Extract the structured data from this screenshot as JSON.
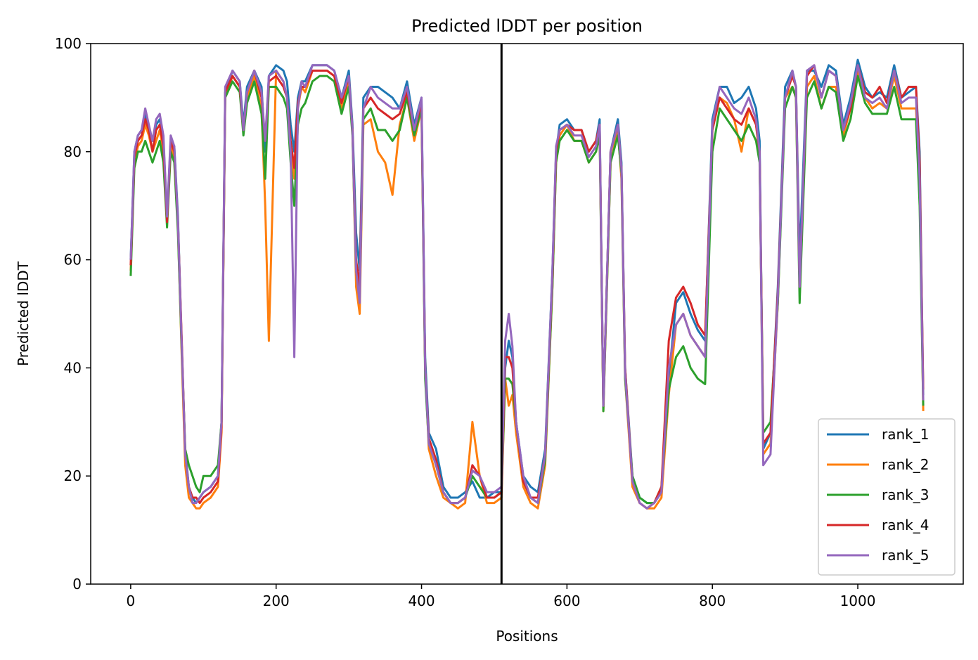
{
  "chart_data": {
    "type": "line",
    "title": "Predicted lDDT per position",
    "xlabel": "Positions",
    "ylabel": "Predicted lDDT",
    "xlim": [
      -55,
      1145
    ],
    "ylim": [
      0,
      100
    ],
    "xticks": [
      0,
      200,
      400,
      600,
      800,
      1000
    ],
    "yticks": [
      0,
      20,
      40,
      60,
      80,
      100
    ],
    "grid": false,
    "legend_position": "lower right",
    "vline": {
      "x": 510,
      "color": "#000000"
    },
    "x": [
      0,
      5,
      10,
      15,
      20,
      25,
      30,
      35,
      40,
      45,
      50,
      55,
      60,
      65,
      70,
      75,
      80,
      85,
      90,
      95,
      100,
      110,
      120,
      125,
      130,
      140,
      150,
      155,
      160,
      170,
      180,
      185,
      190,
      200,
      210,
      215,
      220,
      225,
      230,
      235,
      240,
      250,
      260,
      270,
      280,
      290,
      300,
      305,
      310,
      315,
      320,
      330,
      340,
      350,
      360,
      370,
      380,
      390,
      400,
      405,
      410,
      420,
      430,
      440,
      450,
      460,
      470,
      480,
      490,
      500,
      510,
      515,
      520,
      525,
      530,
      540,
      550,
      560,
      570,
      580,
      585,
      590,
      600,
      610,
      620,
      630,
      640,
      645,
      650,
      660,
      670,
      675,
      680,
      690,
      700,
      710,
      720,
      730,
      740,
      750,
      760,
      770,
      780,
      790,
      800,
      810,
      820,
      830,
      840,
      850,
      860,
      865,
      870,
      880,
      890,
      900,
      910,
      915,
      920,
      930,
      940,
      950,
      960,
      970,
      980,
      990,
      1000,
      1010,
      1020,
      1030,
      1040,
      1050,
      1060,
      1070,
      1080,
      1085,
      1090
    ],
    "series": [
      {
        "name": "rank_1",
        "color": "#1f77b4",
        "values": [
          60,
          80,
          83,
          84,
          87,
          84,
          82,
          85,
          86,
          82,
          68,
          82,
          81,
          68,
          45,
          25,
          18,
          16,
          15,
          16,
          17,
          18,
          20,
          30,
          91,
          95,
          93,
          85,
          92,
          95,
          92,
          80,
          94,
          96,
          95,
          93,
          85,
          80,
          90,
          93,
          93,
          96,
          96,
          96,
          95,
          90,
          95,
          85,
          65,
          58,
          90,
          92,
          92,
          91,
          90,
          88,
          93,
          85,
          90,
          42,
          28,
          25,
          18,
          16,
          16,
          17,
          19,
          16,
          16,
          17,
          17,
          40,
          45,
          42,
          30,
          20,
          18,
          17,
          25,
          58,
          80,
          85,
          86,
          84,
          84,
          80,
          82,
          86,
          33,
          80,
          86,
          78,
          40,
          20,
          16,
          15,
          15,
          17,
          38,
          52,
          54,
          50,
          47,
          45,
          86,
          92,
          92,
          89,
          90,
          92,
          88,
          82,
          25,
          28,
          55,
          92,
          95,
          92,
          60,
          95,
          95,
          92,
          96,
          95,
          85,
          90,
          97,
          92,
          90,
          91,
          90,
          96,
          90,
          91,
          92,
          80,
          35
        ]
      },
      {
        "name": "rank_2",
        "color": "#ff7f0e",
        "values": [
          58,
          78,
          81,
          82,
          85,
          83,
          80,
          82,
          84,
          80,
          67,
          81,
          79,
          66,
          43,
          22,
          16,
          15,
          14,
          14,
          15,
          16,
          18,
          28,
          90,
          94,
          92,
          84,
          90,
          94,
          88,
          70,
          45,
          95,
          93,
          90,
          80,
          75,
          88,
          92,
          91,
          95,
          95,
          95,
          94,
          88,
          93,
          84,
          55,
          50,
          85,
          86,
          80,
          78,
          72,
          85,
          90,
          82,
          88,
          40,
          25,
          20,
          16,
          15,
          14,
          15,
          30,
          20,
          15,
          15,
          16,
          38,
          33,
          35,
          28,
          18,
          15,
          14,
          22,
          55,
          78,
          83,
          85,
          82,
          82,
          78,
          80,
          84,
          32,
          78,
          84,
          75,
          38,
          18,
          15,
          14,
          14,
          16,
          35,
          48,
          50,
          46,
          44,
          42,
          84,
          90,
          89,
          86,
          80,
          88,
          85,
          79,
          24,
          26,
          52,
          90,
          92,
          90,
          55,
          92,
          94,
          88,
          92,
          92,
          83,
          88,
          95,
          90,
          88,
          89,
          88,
          94,
          88,
          88,
          88,
          75,
          32
        ]
      },
      {
        "name": "rank_3",
        "color": "#2ca02c",
        "values": [
          57,
          77,
          80,
          80,
          82,
          80,
          78,
          80,
          82,
          78,
          66,
          80,
          78,
          65,
          44,
          25,
          22,
          20,
          18,
          17,
          20,
          20,
          22,
          30,
          90,
          93,
          91,
          83,
          89,
          93,
          87,
          75,
          92,
          92,
          90,
          88,
          78,
          70,
          85,
          88,
          89,
          93,
          94,
          94,
          93,
          87,
          92,
          83,
          58,
          53,
          86,
          88,
          84,
          84,
          82,
          84,
          90,
          83,
          88,
          38,
          26,
          22,
          17,
          15,
          15,
          16,
          20,
          18,
          16,
          16,
          17,
          38,
          38,
          37,
          30,
          19,
          16,
          15,
          23,
          55,
          78,
          82,
          84,
          82,
          82,
          78,
          80,
          83,
          32,
          78,
          83,
          76,
          38,
          20,
          16,
          15,
          15,
          18,
          36,
          42,
          44,
          40,
          38,
          37,
          80,
          88,
          86,
          84,
          82,
          85,
          82,
          78,
          28,
          30,
          52,
          88,
          92,
          90,
          52,
          90,
          93,
          88,
          92,
          91,
          82,
          86,
          94,
          89,
          87,
          87,
          87,
          92,
          86,
          86,
          86,
          70,
          33
        ]
      },
      {
        "name": "rank_4",
        "color": "#d62728",
        "values": [
          59,
          79,
          82,
          83,
          86,
          84,
          80,
          84,
          85,
          81,
          67,
          82,
          80,
          67,
          46,
          24,
          18,
          16,
          16,
          15,
          16,
          17,
          19,
          29,
          91,
          94,
          92,
          84,
          91,
          95,
          90,
          82,
          93,
          94,
          92,
          90,
          82,
          77,
          89,
          92,
          92,
          95,
          95,
          95,
          94,
          89,
          94,
          84,
          60,
          55,
          88,
          90,
          88,
          87,
          86,
          87,
          91,
          84,
          89,
          40,
          27,
          23,
          17,
          15,
          15,
          16,
          22,
          20,
          16,
          16,
          17,
          42,
          42,
          40,
          30,
          19,
          16,
          16,
          24,
          57,
          80,
          84,
          85,
          84,
          84,
          80,
          82,
          85,
          33,
          80,
          85,
          77,
          40,
          19,
          15,
          14,
          15,
          18,
          45,
          53,
          55,
          52,
          48,
          46,
          84,
          90,
          88,
          86,
          85,
          88,
          85,
          80,
          26,
          28,
          54,
          90,
          94,
          92,
          55,
          94,
          96,
          90,
          95,
          94,
          84,
          88,
          96,
          91,
          90,
          92,
          89,
          95,
          90,
          92,
          92,
          78,
          36
        ]
      },
      {
        "name": "rank_5",
        "color": "#9467bd",
        "values": [
          60,
          80,
          83,
          84,
          88,
          85,
          82,
          86,
          87,
          83,
          68,
          83,
          81,
          67,
          45,
          24,
          18,
          15,
          15,
          16,
          17,
          18,
          20,
          30,
          92,
          95,
          93,
          84,
          91,
          95,
          91,
          82,
          94,
          95,
          93,
          90,
          80,
          42,
          88,
          93,
          92,
          96,
          96,
          96,
          95,
          90,
          94,
          84,
          58,
          52,
          88,
          92,
          90,
          89,
          88,
          88,
          92,
          84,
          90,
          40,
          26,
          22,
          17,
          15,
          15,
          16,
          21,
          20,
          17,
          17,
          18,
          45,
          50,
          44,
          30,
          20,
          16,
          15,
          24,
          58,
          81,
          84,
          85,
          83,
          83,
          79,
          81,
          85,
          33,
          80,
          85,
          77,
          39,
          19,
          15,
          14,
          15,
          17,
          40,
          48,
          50,
          46,
          44,
          42,
          85,
          92,
          90,
          88,
          87,
          90,
          86,
          80,
          22,
          24,
          53,
          90,
          95,
          92,
          55,
          95,
          96,
          90,
          95,
          94,
          84,
          89,
          96,
          90,
          89,
          90,
          88,
          95,
          89,
          90,
          90,
          75,
          34
        ]
      }
    ]
  }
}
